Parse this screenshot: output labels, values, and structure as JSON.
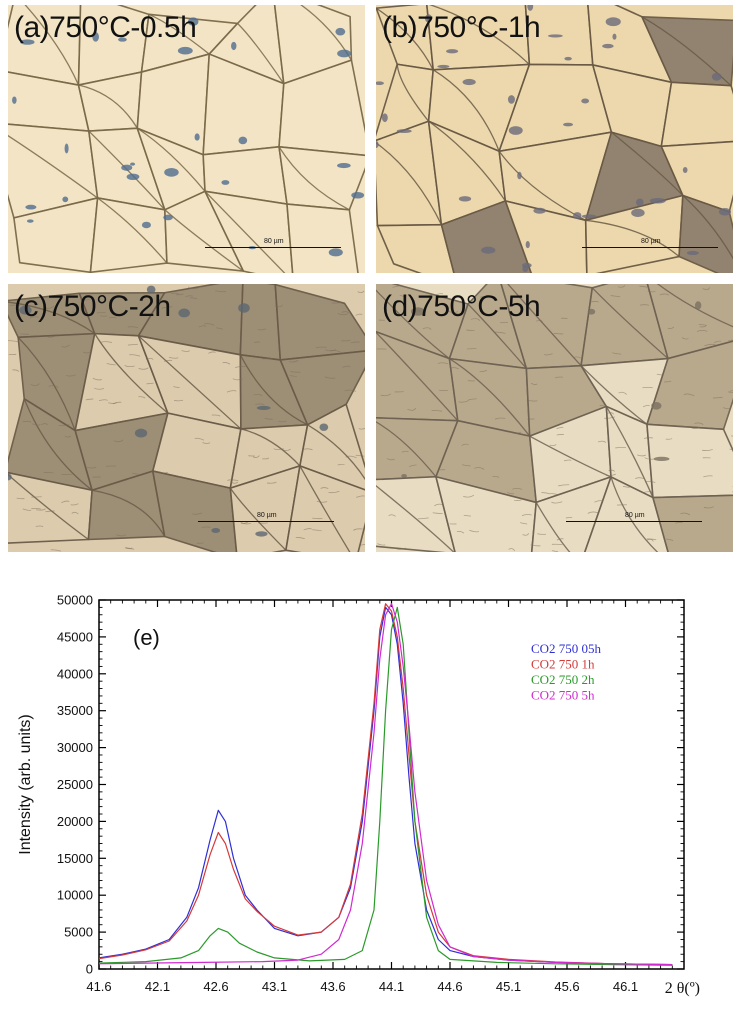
{
  "panels": [
    {
      "label": "(a)750°C-0.5h",
      "scale": "80 µm",
      "bg": "#f2e4c4"
    },
    {
      "label": "(b)750°C-1h",
      "scale": "80 µm",
      "bg": "#ecd8ac"
    },
    {
      "label": "(c)750°C-2h",
      "scale": "80 µm",
      "bg": "#dccbad"
    },
    {
      "label": "(d)750°C-5h",
      "scale": "80 µm",
      "bg": "#e8dcc2"
    }
  ],
  "chart_data": {
    "type": "line",
    "annotation": "(e)",
    "xlabel": "2 θ(º)",
    "ylabel": "Intensity (arb. units)",
    "xlim": [
      41.6,
      46.6
    ],
    "ylim": [
      0,
      50000
    ],
    "x_ticks": [
      "41.6",
      "42.1",
      "42.6",
      "43.1",
      "43.6",
      "44.1",
      "44.6",
      "45.1",
      "45.6",
      "46.1"
    ],
    "y_ticks": [
      "0",
      "5000",
      "10000",
      "15000",
      "20000",
      "25000",
      "30000",
      "35000",
      "40000",
      "45000",
      "50000"
    ],
    "legend_position": "top-right",
    "series": [
      {
        "name": "CO2 750 05h",
        "color": "#2f2fd6",
        "x": [
          41.6,
          41.8,
          42.0,
          42.2,
          42.35,
          42.45,
          42.55,
          42.62,
          42.68,
          42.75,
          42.85,
          42.95,
          43.1,
          43.3,
          43.5,
          43.65,
          43.75,
          43.85,
          43.95,
          44.0,
          44.05,
          44.1,
          44.15,
          44.2,
          44.25,
          44.3,
          44.4,
          44.5,
          44.6,
          44.8,
          45.1,
          45.5,
          46.0,
          46.5
        ],
        "y": [
          1500,
          2000,
          2700,
          4000,
          7000,
          11000,
          17500,
          21500,
          20000,
          15000,
          10000,
          8000,
          5500,
          4500,
          5000,
          7000,
          11000,
          20000,
          35000,
          45000,
          49000,
          48000,
          44000,
          36000,
          26000,
          17000,
          8000,
          4000,
          2500,
          1700,
          1200,
          900,
          700,
          600
        ]
      },
      {
        "name": "CO2 750 1h",
        "color": "#d43a3a",
        "x": [
          41.6,
          41.8,
          42.0,
          42.2,
          42.35,
          42.45,
          42.55,
          42.62,
          42.68,
          42.75,
          42.85,
          42.95,
          43.1,
          43.3,
          43.5,
          43.65,
          43.75,
          43.85,
          43.95,
          44.0,
          44.05,
          44.1,
          44.15,
          44.2,
          44.25,
          44.3,
          44.4,
          44.5,
          44.6,
          44.8,
          45.1,
          45.5,
          46.0,
          46.5
        ],
        "y": [
          1400,
          1900,
          2600,
          3800,
          6500,
          10000,
          15500,
          18500,
          17000,
          13500,
          9500,
          7800,
          5800,
          4600,
          5000,
          7000,
          11500,
          21000,
          36000,
          46000,
          49500,
          48500,
          45000,
          38000,
          29000,
          20000,
          10000,
          5000,
          3000,
          1800,
          1300,
          950,
          700,
          600
        ]
      },
      {
        "name": "CO2 750 2h",
        "color": "#2a9a2a",
        "x": [
          41.6,
          42.0,
          42.3,
          42.45,
          42.55,
          42.62,
          42.7,
          42.8,
          42.95,
          43.1,
          43.4,
          43.7,
          43.85,
          43.95,
          44.0,
          44.05,
          44.1,
          44.15,
          44.2,
          44.25,
          44.3,
          44.4,
          44.5,
          44.6,
          45.0,
          45.5,
          46.0,
          46.5
        ],
        "y": [
          800,
          1000,
          1500,
          2500,
          4500,
          5500,
          5000,
          3500,
          2300,
          1500,
          1100,
          1300,
          2500,
          8000,
          20000,
          35000,
          46000,
          49000,
          44000,
          32000,
          20000,
          7000,
          2500,
          1300,
          900,
          700,
          600,
          500
        ]
      },
      {
        "name": "CO2 750 5h",
        "color": "#d02ad0",
        "x": [
          41.6,
          42.0,
          42.5,
          43.0,
          43.3,
          43.5,
          43.65,
          43.75,
          43.85,
          43.95,
          44.0,
          44.05,
          44.1,
          44.15,
          44.2,
          44.25,
          44.3,
          44.4,
          44.5,
          44.6,
          44.8,
          45.1,
          45.5,
          46.0,
          46.5
        ],
        "y": [
          700,
          800,
          900,
          1000,
          1200,
          2000,
          4000,
          8000,
          17000,
          32000,
          42000,
          48000,
          49500,
          47000,
          41000,
          33000,
          24000,
          12000,
          6000,
          3000,
          1700,
          1200,
          900,
          700,
          600
        ]
      }
    ]
  }
}
